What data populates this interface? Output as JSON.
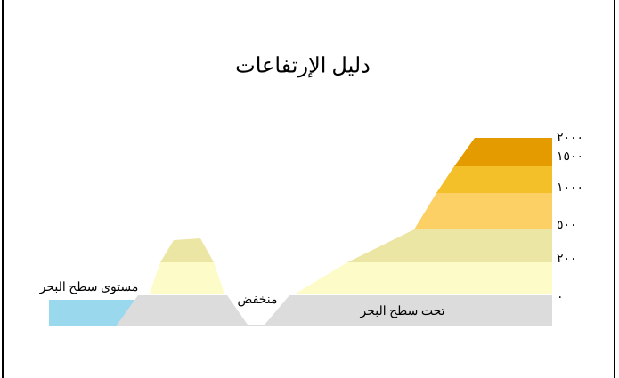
{
  "title": "دليل الإرتفاعات",
  "labels": {
    "sea_level": "مستوى سطح البحر",
    "depression": "منخفض",
    "below_sea": "تحت سطح البحر"
  },
  "elevation_levels": [
    "٢٠٠٠",
    "١٥٠٠",
    "١٠٠٠",
    "٥٠٠",
    "٢٠٠",
    "٠"
  ]
}
